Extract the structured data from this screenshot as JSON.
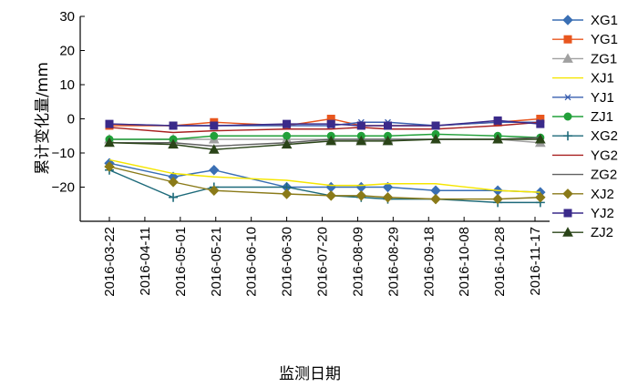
{
  "chart_data": {
    "type": "line",
    "title": "",
    "xlabel": "监测日期",
    "ylabel": "累计变化量/mm",
    "ylim": [
      -30,
      30
    ],
    "yticks": [
      "30",
      "20",
      "10",
      "0",
      "−10",
      "−20"
    ],
    "xtick_labels": [
      "2016-03-22",
      "2016-04-11",
      "2016-05-01",
      "2016-05-21",
      "2016-06-10",
      "2016-06-30",
      "2016-07-20",
      "2016-08-09",
      "2016-08-29",
      "2016-09-18",
      "2016-10-08",
      "2016-10-28",
      "2016-11-17"
    ],
    "grid": false,
    "legend_position": "right",
    "x": [
      "2016-03-22",
      "2016-04-27",
      "2016-05-20",
      "2016-06-30",
      "2016-07-25",
      "2016-08-11",
      "2016-08-26",
      "2016-09-22",
      "2016-10-27",
      "2016-11-20"
    ],
    "series": [
      {
        "name": "XG1",
        "color": "#3a6fb4",
        "marker": "diamond",
        "values": [
          -13,
          -17,
          -15,
          -20,
          -20,
          -20,
          -20,
          -21,
          -21,
          -21.5
        ]
      },
      {
        "name": "YG1",
        "color": "#e8561e",
        "marker": "square",
        "values": [
          -2,
          -2,
          -1,
          -2,
          0,
          -2,
          -2,
          -2,
          -1,
          0
        ]
      },
      {
        "name": "ZG1",
        "color": "#a0a0a0",
        "marker": "triangle",
        "values": [
          -6,
          -6,
          -6,
          -6,
          -6,
          -6,
          -6,
          -6,
          -6,
          -7
        ]
      },
      {
        "name": "XJ1",
        "color": "#f5e600",
        "marker": "none",
        "values": [
          -12,
          -16,
          -17,
          -18,
          -19.5,
          -19.5,
          -19,
          -19,
          -21,
          -21.5
        ]
      },
      {
        "name": "YJ1",
        "color": "#3a5fb0",
        "marker": "asterisk",
        "values": [
          -1.5,
          -2,
          -2,
          -2,
          -2,
          -1,
          -1,
          -2,
          -1,
          -1
        ]
      },
      {
        "name": "ZJ1",
        "color": "#22a03a",
        "marker": "circle",
        "values": [
          -6,
          -6,
          -5,
          -5,
          -5,
          -5,
          -5,
          -4.5,
          -5,
          -5.5
        ]
      },
      {
        "name": "XG2",
        "color": "#1d6a7a",
        "marker": "plus",
        "values": [
          -15,
          -23,
          -20,
          -20,
          -22.5,
          -23,
          -23.5,
          -23.5,
          -24.5,
          -24.5
        ]
      },
      {
        "name": "YG2",
        "color": "#a82020",
        "marker": "none",
        "values": [
          -2.5,
          -4,
          -3.5,
          -3,
          -3,
          -2.5,
          -3,
          -3,
          -2,
          -1
        ]
      },
      {
        "name": "ZG2",
        "color": "#606060",
        "marker": "none",
        "values": [
          -7,
          -7,
          -8,
          -7,
          -6,
          -6,
          -6,
          -6,
          -6,
          -5.5
        ]
      },
      {
        "name": "XJ2",
        "color": "#8a7a18",
        "marker": "diamond",
        "values": [
          -14,
          -18.5,
          -21,
          -22,
          -22.5,
          -22.5,
          -23,
          -23.5,
          -23.5,
          -23
        ]
      },
      {
        "name": "YJ2",
        "color": "#3a2a8a",
        "marker": "square",
        "values": [
          -1.5,
          -2,
          -2,
          -1.5,
          -1.5,
          -2,
          -2,
          -2,
          -0.5,
          -1.5
        ]
      },
      {
        "name": "ZJ2",
        "color": "#2a4418",
        "marker": "triangle",
        "values": [
          -7,
          -7.5,
          -9,
          -7.5,
          -6.5,
          -6.5,
          -6.5,
          -6,
          -6,
          -6
        ]
      }
    ]
  }
}
